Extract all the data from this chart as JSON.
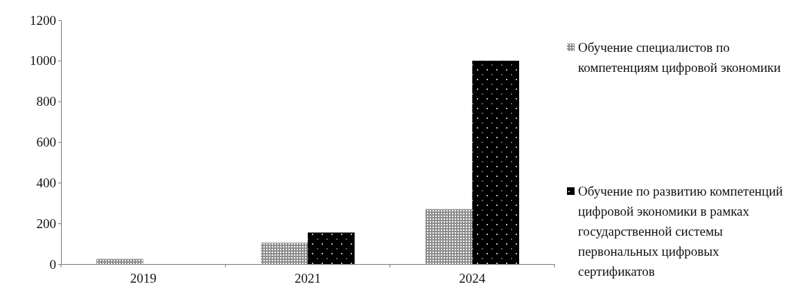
{
  "chart_data": {
    "type": "bar",
    "categories": [
      "2019",
      "2021",
      "2024"
    ],
    "series": [
      {
        "name": "Обучение специалистов по компетенциям цифровой экономики",
        "color": "#8c8c8c",
        "values": [
          25,
          105,
          270
        ]
      },
      {
        "name": "Обучение по развитию компетенций цифровой экономики в рамках государственной системы первональных цифровых сертификатов",
        "color": "#000000",
        "values": [
          null,
          155,
          1000
        ]
      }
    ],
    "ylim": [
      0,
      1200
    ],
    "yticks": [
      0,
      200,
      400,
      600,
      800,
      1000,
      1200
    ],
    "grid": false,
    "legend": "right"
  }
}
